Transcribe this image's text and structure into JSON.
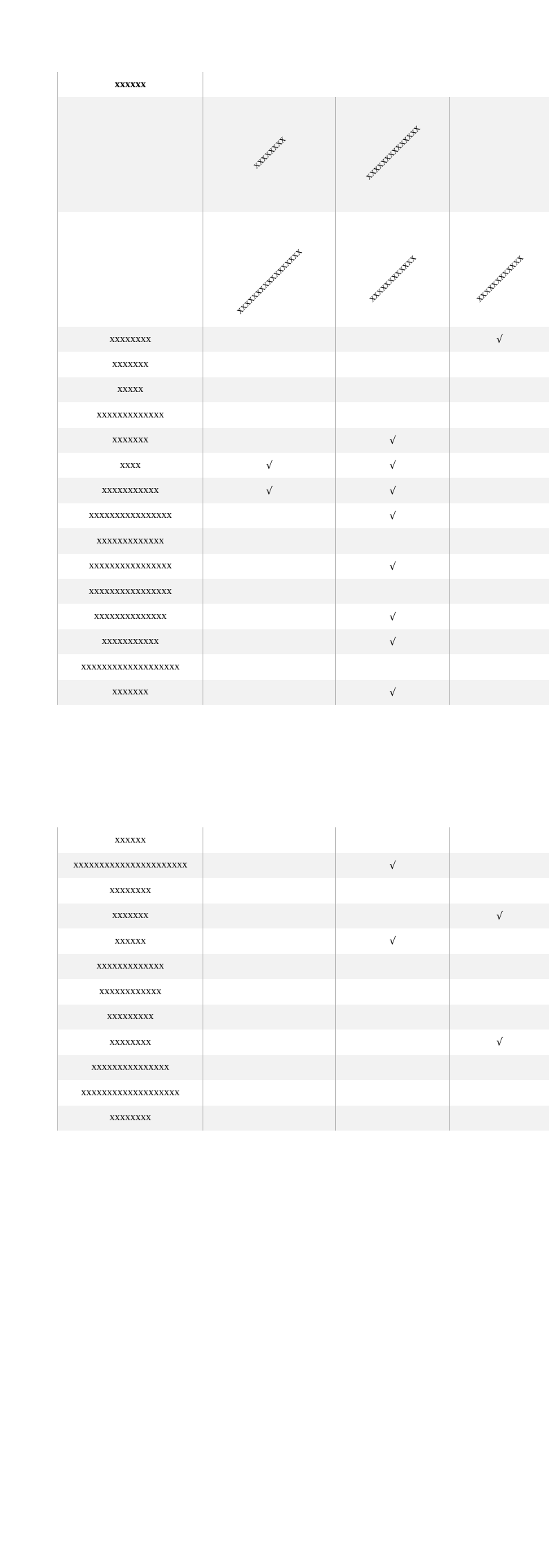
{
  "table1": {
    "title": "xxxxxx",
    "header_row_1": [
      "xxxxxxxx",
      "xxxxxxxxxxxxxx",
      ""
    ],
    "header_row_2": [
      "xxxxxxxxxxxxxxxxx",
      "xxxxxxxxxxxx",
      "xxxxxxxxxxxx"
    ],
    "rows": [
      {
        "label": "xxxxxxxx",
        "checks": [
          false,
          false,
          true
        ]
      },
      {
        "label": "xxxxxxx",
        "checks": [
          false,
          false,
          false
        ]
      },
      {
        "label": "xxxxx",
        "checks": [
          false,
          false,
          false
        ]
      },
      {
        "label": "xxxxxxxxxxxxx",
        "checks": [
          false,
          false,
          false
        ]
      },
      {
        "label": "xxxxxxx",
        "checks": [
          false,
          true,
          false
        ]
      },
      {
        "label": "xxxx",
        "checks": [
          true,
          true,
          false
        ]
      },
      {
        "label": "xxxxxxxxxxx",
        "checks": [
          true,
          true,
          false
        ]
      },
      {
        "label": "xxxxxxxxxxxxxxxx",
        "checks": [
          false,
          true,
          false
        ]
      },
      {
        "label": "xxxxxxxxxxxxx",
        "checks": [
          false,
          false,
          false
        ]
      },
      {
        "label": "xxxxxxxxxxxxxxxx",
        "checks": [
          false,
          true,
          false
        ]
      },
      {
        "label": "xxxxxxxxxxxxxxxx",
        "checks": [
          false,
          false,
          false
        ]
      },
      {
        "label": "xxxxxxxxxxxxxx",
        "checks": [
          false,
          true,
          false
        ]
      },
      {
        "label": "xxxxxxxxxxx",
        "checks": [
          false,
          true,
          false
        ]
      },
      {
        "label": "xxxxxxxxxxxxxxxxxxx",
        "checks": [
          false,
          false,
          false
        ]
      },
      {
        "label": "xxxxxxx",
        "checks": [
          false,
          true,
          false
        ]
      }
    ]
  },
  "table2": {
    "rows": [
      {
        "label": "xxxxxx",
        "checks": [
          false,
          false,
          false
        ]
      },
      {
        "label": "xxxxxxxxxxxxxxxxxxxxxx",
        "checks": [
          false,
          true,
          false
        ]
      },
      {
        "label": "xxxxxxxx",
        "checks": [
          false,
          false,
          false
        ]
      },
      {
        "label": "xxxxxxx",
        "checks": [
          false,
          false,
          true
        ]
      },
      {
        "label": "xxxxxx",
        "checks": [
          false,
          true,
          false
        ]
      },
      {
        "label": "xxxxxxxxxxxxx",
        "checks": [
          false,
          false,
          false
        ]
      },
      {
        "label": "xxxxxxxxxxxx",
        "checks": [
          false,
          false,
          false
        ]
      },
      {
        "label": "xxxxxxxxx",
        "checks": [
          false,
          false,
          false
        ]
      },
      {
        "label": "xxxxxxxx",
        "checks": [
          false,
          false,
          true
        ]
      },
      {
        "label": "xxxxxxxxxxxxxxx",
        "checks": [
          false,
          false,
          false
        ]
      },
      {
        "label": "xxxxxxxxxxxxxxxxxxx",
        "checks": [
          false,
          false,
          false
        ]
      },
      {
        "label": "xxxxxxxx",
        "checks": [
          false,
          false,
          false
        ]
      }
    ]
  },
  "check_mark": "√",
  "colors": {
    "stripe": "#f2f2f2",
    "border": "#aaaaaa"
  }
}
